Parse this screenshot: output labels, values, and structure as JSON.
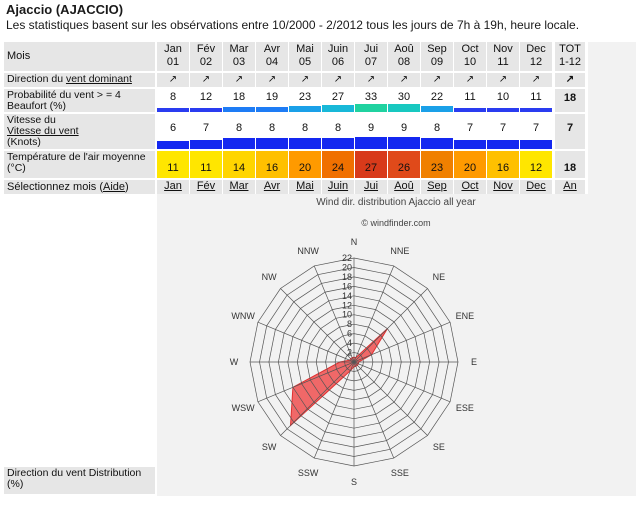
{
  "page": {
    "title": "Ajaccio (AJACCIO)",
    "subtitle": "Les statistiques basent sur les obsérvations entre 10/2000 - 2/2012 tous les jours de 7h à 19h, heure locale."
  },
  "labels": {
    "mois": "Mois",
    "direction_prefix": "Direction du ",
    "direction_link": "vent dominant",
    "probability": "Probabilité du vent > = 4 Beaufort (%)",
    "speed_prefix": "Vitesse du ",
    "speed_link": "Vitesse du vent",
    "speed_suffix": "(Knots)",
    "temperature": "Température de l'air moyenne (°C)",
    "select_prefix": "Sélectionnez mois (",
    "select_link": "Aide",
    "select_suffix": ")",
    "distribution": "Direction du vent Distribution (%)"
  },
  "months": [
    {
      "name": "Jan",
      "num": "01",
      "prob": "8",
      "speed": "6",
      "temp": "11",
      "pcolor": "#2a3cf0",
      "tcolor": "#ffe600"
    },
    {
      "name": "Fév",
      "num": "02",
      "prob": "12",
      "speed": "7",
      "temp": "11",
      "pcolor": "#2a3cf0",
      "tcolor": "#ffe600"
    },
    {
      "name": "Mar",
      "num": "03",
      "prob": "18",
      "speed": "8",
      "temp": "14",
      "pcolor": "#1e7cf5",
      "tcolor": "#ffd500"
    },
    {
      "name": "Avr",
      "num": "04",
      "prob": "19",
      "speed": "8",
      "temp": "16",
      "pcolor": "#1e7cf5",
      "tcolor": "#ffc000"
    },
    {
      "name": "Mai",
      "num": "05",
      "prob": "23",
      "speed": "8",
      "temp": "20",
      "pcolor": "#1aa0e8",
      "tcolor": "#ff9a00"
    },
    {
      "name": "Juin",
      "num": "06",
      "prob": "27",
      "speed": "8",
      "temp": "24",
      "pcolor": "#18b8d8",
      "tcolor": "#f07000"
    },
    {
      "name": "Jui",
      "num": "07",
      "prob": "33",
      "speed": "9",
      "temp": "27",
      "pcolor": "#20d2a0",
      "tcolor": "#d83a1a"
    },
    {
      "name": "Aoû",
      "num": "08",
      "prob": "30",
      "speed": "9",
      "temp": "26",
      "pcolor": "#18c8c0",
      "tcolor": "#e04a1a"
    },
    {
      "name": "Sep",
      "num": "09",
      "prob": "22",
      "speed": "8",
      "temp": "23",
      "pcolor": "#1aa0e8",
      "tcolor": "#f08000"
    },
    {
      "name": "Oct",
      "num": "10",
      "prob": "11",
      "speed": "7",
      "temp": "20",
      "pcolor": "#2a3cf0",
      "tcolor": "#ff9a00"
    },
    {
      "name": "Nov",
      "num": "11",
      "prob": "10",
      "speed": "7",
      "temp": "16",
      "pcolor": "#2a3cf0",
      "tcolor": "#ffc000"
    },
    {
      "name": "Dec",
      "num": "12",
      "prob": "11",
      "speed": "7",
      "temp": "12",
      "pcolor": "#2a3cf0",
      "tcolor": "#ffe600"
    }
  ],
  "total": {
    "name": "TOT",
    "num": "1-12",
    "prob": "18",
    "speed": "7",
    "temp": "18",
    "select": "An"
  },
  "rose": {
    "title": "Wind dir. distribution Ajaccio all year",
    "copyright": "© windfinder.com",
    "directions": [
      "N",
      "NNE",
      "NE",
      "ENE",
      "E",
      "ESE",
      "SE",
      "SSE",
      "S",
      "SSW",
      "SW",
      "WSW",
      "W",
      "WNW",
      "NW",
      "NNW"
    ],
    "scale": [
      "2",
      "4",
      "6",
      "8",
      "10",
      "12",
      "14",
      "16",
      "18",
      "20",
      "22"
    ],
    "values": [
      1,
      1,
      10,
      4,
      1,
      1,
      1,
      1,
      1,
      2,
      19,
      14,
      3,
      1,
      1,
      1
    ],
    "max": 22,
    "fill": "#f05050",
    "grid_color": "#555555"
  }
}
